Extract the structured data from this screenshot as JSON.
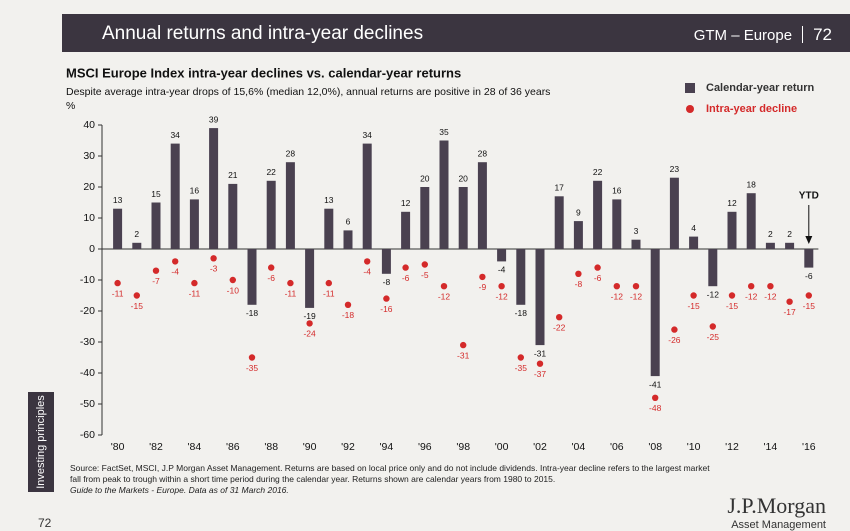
{
  "header": {
    "title": "Annual returns and intra-year declines",
    "section": "GTM – Europe",
    "page": "72"
  },
  "chart_data": {
    "type": "bar",
    "title": "MSCI Europe Index intra-year declines vs. calendar-year returns",
    "subtitle": "Despite average intra-year drops of 15,6% (median 12,0%), annual returns are positive in 28 of 36 years",
    "y_label": "%",
    "annotation": "YTD",
    "categories": [
      "'80",
      null,
      "'82",
      null,
      "'84",
      null,
      "'86",
      null,
      "'88",
      null,
      "'90",
      null,
      "'92",
      null,
      "'94",
      null,
      "'96",
      null,
      "'98",
      null,
      "'00",
      null,
      "'02",
      null,
      "'04",
      null,
      "'06",
      null,
      "'08",
      null,
      "'10",
      null,
      "'12",
      null,
      "'14",
      null,
      "'16"
    ],
    "series": [
      {
        "name": "Calendar-year return",
        "type": "bar",
        "color": "#4a4150",
        "values": [
          13,
          2,
          15,
          34,
          16,
          39,
          21,
          -18,
          22,
          28,
          -19,
          13,
          6,
          34,
          -8,
          12,
          20,
          35,
          20,
          28,
          -4,
          -18,
          -31,
          17,
          9,
          22,
          16,
          3,
          -41,
          23,
          4,
          -12,
          12,
          18,
          2,
          2,
          -6
        ]
      },
      {
        "name": "Intra-year decline",
        "type": "scatter",
        "color": "#d42a2a",
        "values": [
          -11,
          -15,
          -7,
          -4,
          -11,
          -3,
          -10,
          -35,
          -6,
          -11,
          -24,
          -11,
          -18,
          -4,
          -16,
          -6,
          -5,
          -12,
          -31,
          -9,
          -12,
          -35,
          -37,
          -22,
          -8,
          -6,
          -12,
          -12,
          -48,
          -26,
          -15,
          -25,
          -15,
          -12,
          -12,
          -17,
          -15
        ]
      }
    ],
    "ylim": [
      -60,
      40
    ],
    "yticks": [
      -60,
      -50,
      -40,
      -30,
      -20,
      -10,
      0,
      10,
      20,
      30,
      40
    ],
    "legend": "top-right"
  },
  "footer": {
    "source": "Source: FactSet, MSCI, J.P Morgan Asset Management. Returns are based on local price only and do not include dividends. Intra-year decline refers to the largest market fall from peak to trough within a short time period during the calendar year. Returns shown are calendar years from 1980 to 2015.",
    "guide": "Guide to the Markets - Europe. Data as of 31 March 2016.",
    "side_label": "Investing principles",
    "logo": "J.P.Morgan",
    "logo_sub": "Asset Management",
    "page": "72"
  }
}
